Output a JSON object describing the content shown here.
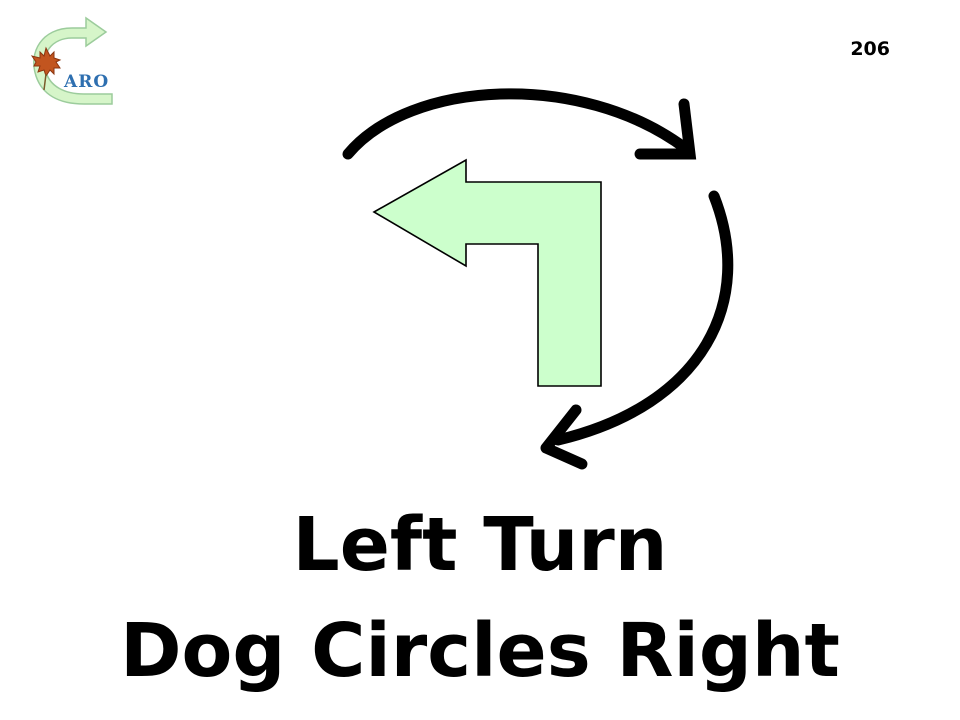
{
  "logo": {
    "text": "ARO",
    "icon": "maple-leaf-circular-arrow-logo",
    "text_color": "#2e6fb0",
    "arrow_color": "#d6f5c9",
    "leaf_color": "#c2551f"
  },
  "sign": {
    "number": "206",
    "title_line1": "Left Turn",
    "title_line2": "Dog Circles Right"
  },
  "graphic": {
    "left_arrow_icon": "left-turn-arrow-icon",
    "circle_arrows_icon": "clockwise-circle-arrows-icon",
    "arrow_fill": "#ccffcc",
    "arrow_stroke": "#000000",
    "circle_stroke": "#000000"
  }
}
